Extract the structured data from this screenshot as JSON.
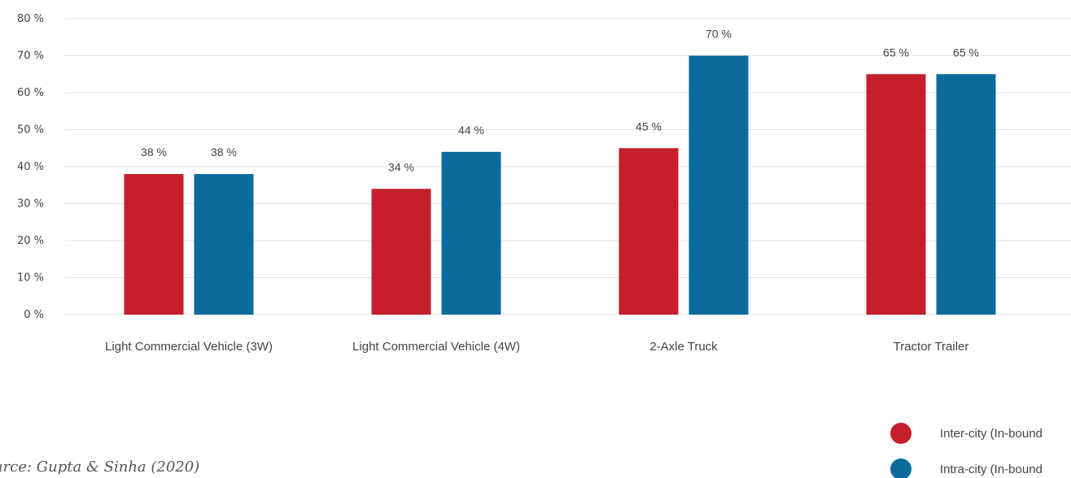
{
  "chart_data": {
    "type": "bar",
    "categories": [
      "Light Commercial Vehicle (3W)",
      "Light Commercial Vehicle (4W)",
      "2-Axle Truck",
      "Tractor Trailer"
    ],
    "series": [
      {
        "name": "Inter-city (In-bound",
        "color": "#c41f2a",
        "values": [
          38,
          34,
          45,
          65
        ],
        "labels": [
          "38 %",
          "34 %",
          "45 %",
          "65 %"
        ]
      },
      {
        "name": "Intra-city (In-bound",
        "color": "#0c6b9d",
        "values": [
          38,
          44,
          70,
          65
        ],
        "labels": [
          "38 %",
          "44 %",
          "70 %",
          "65 %"
        ]
      }
    ],
    "ylim": [
      0,
      80
    ],
    "yticks": [
      "0 %",
      "10 %",
      "20 %",
      "30 %",
      "40 %",
      "50 %",
      "60 %",
      "70 %",
      "80 %"
    ],
    "grid": true,
    "legend": "bottom-right"
  },
  "source": "urce: Gupta & Sinha (2020)"
}
